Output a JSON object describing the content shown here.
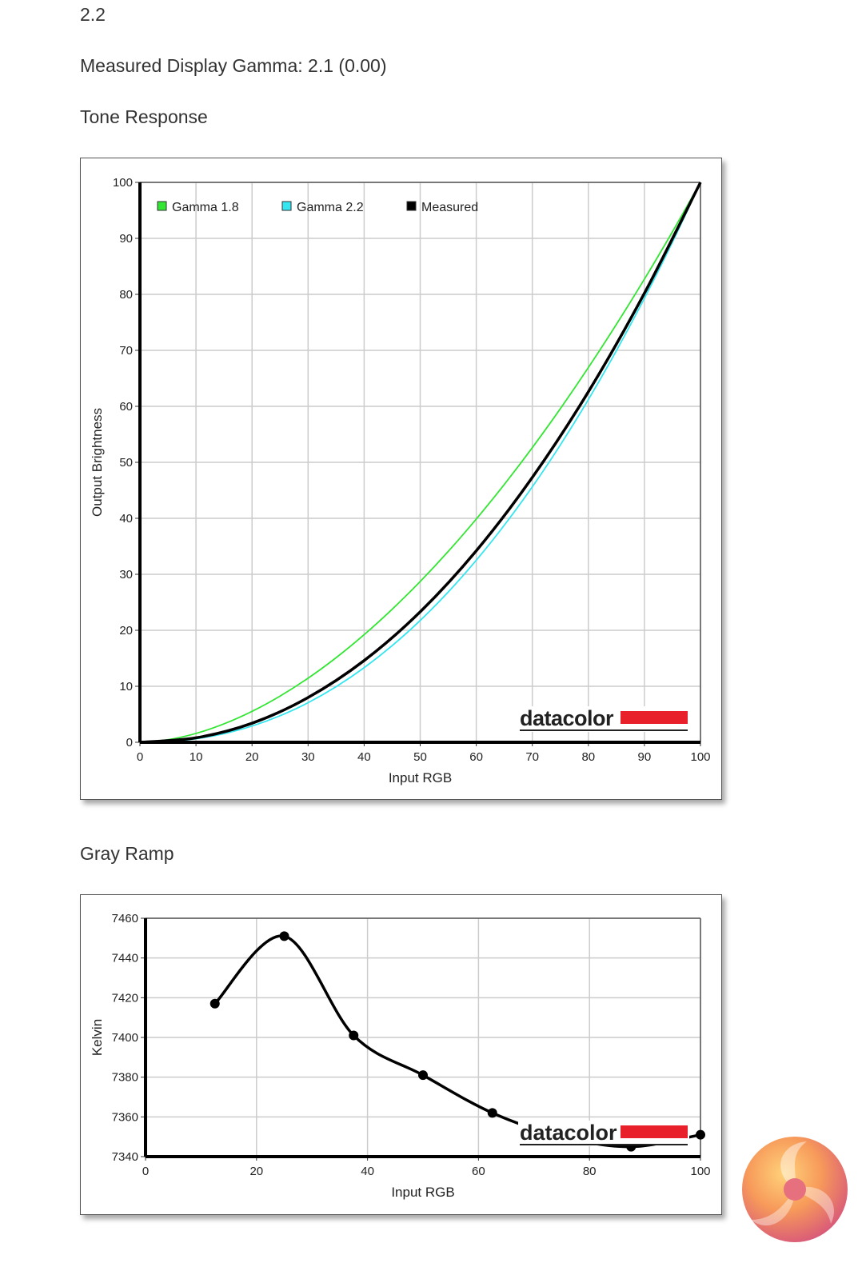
{
  "header": {
    "top_value": "2.2",
    "measured_gamma": "Measured Display Gamma: 2.1 (0.00)",
    "tone_title": "Tone Response",
    "gray_title": "Gray Ramp"
  },
  "chart_data": [
    {
      "type": "line",
      "xlabel": "Input RGB",
      "ylabel": "Output Brightness",
      "xlim": [
        0,
        100
      ],
      "ylim": [
        0,
        100
      ],
      "xticks": [
        0,
        10,
        20,
        30,
        40,
        50,
        60,
        70,
        80,
        90,
        100
      ],
      "yticks": [
        0,
        10,
        20,
        30,
        40,
        50,
        60,
        70,
        80,
        90,
        100
      ],
      "grid": true,
      "legend": "top-left",
      "watermark": "datacolor",
      "series": [
        {
          "name": "Gamma 1.8",
          "color": "#33e633",
          "x": [
            0,
            5,
            10,
            15,
            20,
            25,
            30,
            35,
            40,
            45,
            50,
            55,
            60,
            65,
            70,
            75,
            80,
            85,
            90,
            95,
            100
          ],
          "y": [
            0,
            0.46,
            1.58,
            3.29,
            5.52,
            8.25,
            11.45,
            15.11,
            19.22,
            23.76,
            28.72,
            34.09,
            39.87,
            46.05,
            52.62,
            59.58,
            66.92,
            74.64,
            82.72,
            91.18,
            100
          ]
        },
        {
          "name": "Gamma 2.2",
          "color": "#33e6f0",
          "x": [
            0,
            5,
            10,
            15,
            20,
            25,
            30,
            35,
            40,
            45,
            50,
            55,
            60,
            65,
            70,
            75,
            80,
            85,
            90,
            95,
            100
          ],
          "y": [
            0,
            0.14,
            0.63,
            1.54,
            2.9,
            4.74,
            7.07,
            9.93,
            13.32,
            17.26,
            21.76,
            26.84,
            32.51,
            38.77,
            45.62,
            53.1,
            61.2,
            69.94,
            79.31,
            89.33,
            100
          ]
        },
        {
          "name": "Measured",
          "color": "#000000",
          "x": [
            0,
            10,
            20,
            30,
            40,
            50,
            60,
            70,
            80,
            90,
            100
          ],
          "y": [
            0,
            0.8,
            3.4,
            8.0,
            14.6,
            23.3,
            34.2,
            47.3,
            62.6,
            80.2,
            100
          ]
        }
      ]
    },
    {
      "type": "line",
      "xlabel": "Input RGB",
      "ylabel": "Kelvin",
      "xlim": [
        0,
        100
      ],
      "ylim": [
        7340,
        7460
      ],
      "xticks": [
        0,
        20,
        40,
        60,
        80,
        100
      ],
      "yticks": [
        7340,
        7360,
        7380,
        7400,
        7420,
        7440,
        7460
      ],
      "grid": true,
      "watermark": "datacolor",
      "series": [
        {
          "color": "#000000",
          "x": [
            12.5,
            25,
            37.5,
            50,
            62.5,
            75,
            87.5,
            100
          ],
          "y": [
            7417,
            7451,
            7401,
            7381,
            7362,
            7350,
            7345,
            7351
          ]
        }
      ]
    }
  ],
  "colors": {
    "brand_red": "#e8202a",
    "grid": "#cccccc"
  }
}
